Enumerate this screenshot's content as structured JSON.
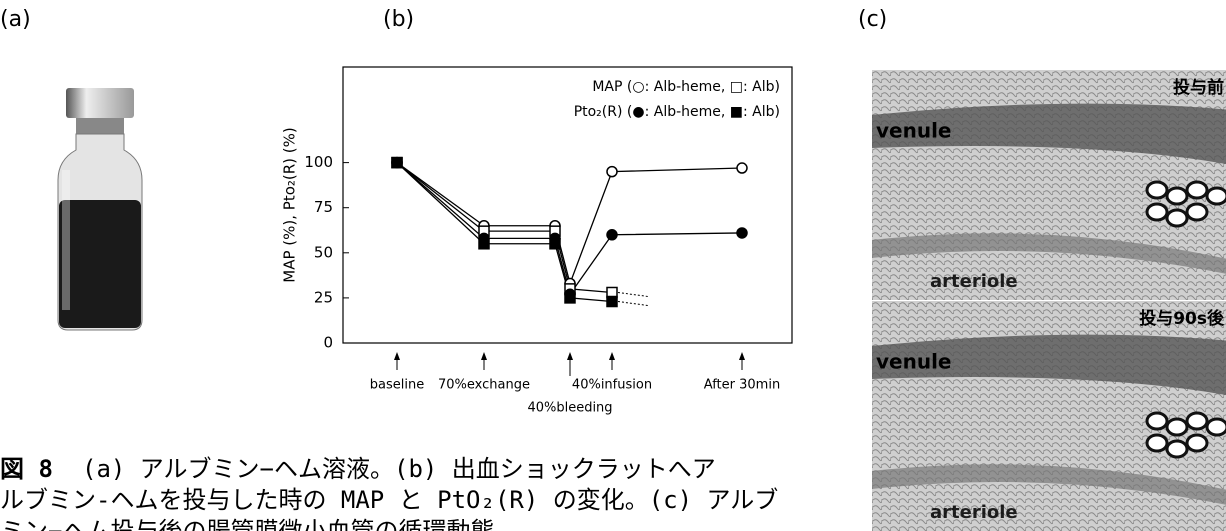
{
  "panels": [
    "(a)",
    "(b)",
    "(c)"
  ],
  "chart_data": {
    "type": "line",
    "ylabel": "MAP (%), Pto₂(R) (%)",
    "legend": [
      "MAP (○: Alb-heme, □: Alb)",
      "Pto₂(R) (●: Alb-heme, ■: Alb)"
    ],
    "categories": [
      "baseline",
      "70%exchange",
      null,
      "40%bleeding",
      "40%infusion",
      "After 30min"
    ],
    "series": [
      {
        "marker": "circle",
        "filled": false,
        "color": "#000000",
        "values": [
          100,
          65,
          65,
          33,
          95,
          97
        ]
      },
      {
        "marker": "square",
        "filled": false,
        "color": "#000000",
        "dotted_tail": true,
        "values": [
          100,
          62,
          62,
          30,
          28,
          null
        ]
      },
      {
        "marker": "circle",
        "filled": true,
        "color": "#000000",
        "values": [
          100,
          58,
          58,
          27,
          60,
          61
        ]
      },
      {
        "marker": "square",
        "filled": true,
        "color": "#000000",
        "dotted_tail": true,
        "values": [
          100,
          55,
          55,
          25,
          23,
          null
        ]
      }
    ],
    "ylim": [
      0,
      153
    ],
    "yticks": [
      0,
      25,
      50,
      75,
      100
    ]
  },
  "micrographs": [
    {
      "caption": "投与前",
      "labels": [
        "venule",
        "arteriole"
      ]
    },
    {
      "caption": "投与90s後",
      "labels": [
        "venule",
        "arteriole"
      ]
    }
  ],
  "caption": {
    "label": "図 8",
    "lines": [
      "(a) アルブミン−ヘム溶液。(b) 出血ショックラットへア",
      "ルブミン-ヘムを投与した時の MAP と PtO₂(R) の変化。(c) アルブ",
      "ミン−ヘム投与後の腸管膜微小血管の循環動態"
    ]
  }
}
